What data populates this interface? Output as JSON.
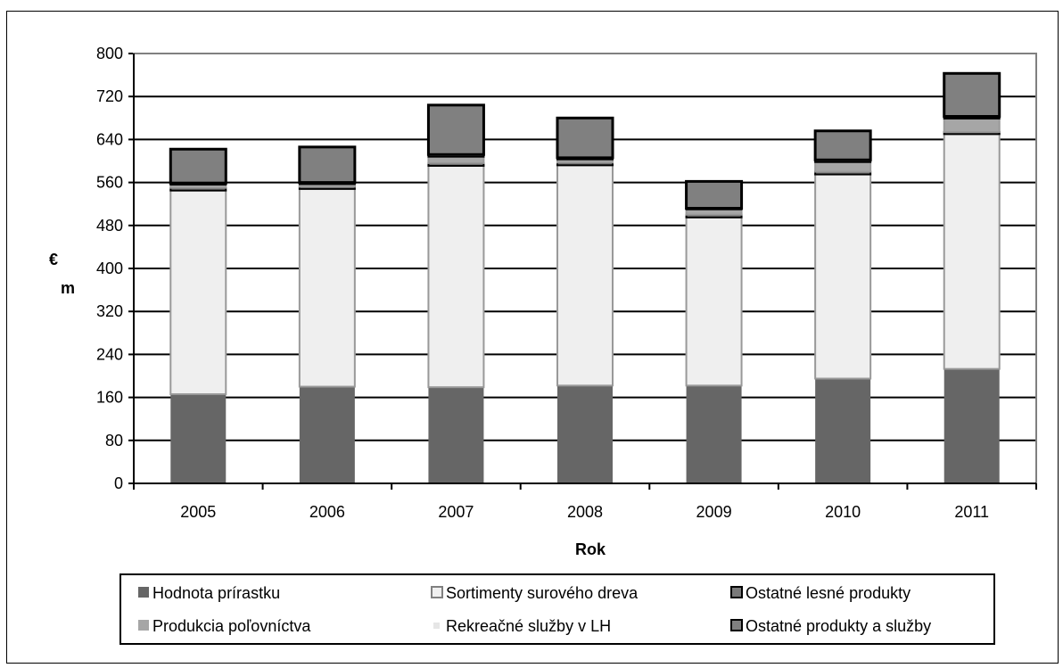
{
  "chart_data": {
    "type": "bar",
    "stacked": true,
    "categories": [
      "2005",
      "2006",
      "2007",
      "2008",
      "2009",
      "2010",
      "2011"
    ],
    "xlabel": "Rok",
    "ylabel": "€\nm",
    "ylim": [
      0,
      800
    ],
    "yticks": [
      0,
      80,
      160,
      240,
      320,
      400,
      480,
      560,
      640,
      720,
      800
    ],
    "grid": true,
    "legend_position": "bottom",
    "series": [
      {
        "name": "Hodnota prírastku",
        "color": "#666666",
        "values": [
          166,
          180,
          179,
          182,
          182,
          195,
          213
        ]
      },
      {
        "name": "Sortimenty surového dreva",
        "color": "#efefef",
        "values": [
          379,
          368,
          412,
          410,
          313,
          380,
          437
        ]
      },
      {
        "name": "Ostatné lesné produkty",
        "color": "#7a7a7a",
        "values": [
          5,
          4,
          5,
          5,
          5,
          5,
          4
        ]
      },
      {
        "name": "Produkcia poľovníctva",
        "color": "#a6a6a6",
        "values": [
          6,
          5,
          12,
          6,
          10,
          18,
          25
        ]
      },
      {
        "name": "Rekreačné služby v LH",
        "color": "#e6e6e6",
        "values": [
          3,
          3,
          4,
          3,
          2,
          4,
          4
        ]
      },
      {
        "name": "Ostatné produkty a služby",
        "color": "#808080",
        "values": [
          63,
          66,
          92,
          74,
          50,
          54,
          80
        ]
      }
    ]
  }
}
